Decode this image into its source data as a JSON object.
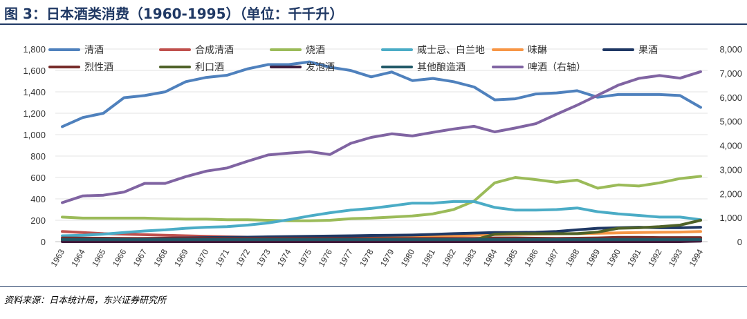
{
  "figure": {
    "title": "图 3：日本酒类消费（1960-1995）（单位：千千升）",
    "source": "资料来源：日本统计局，东兴证券研究所"
  },
  "chart_data": {
    "type": "line",
    "title": "图 3：日本酒类消费（1960-1995）（单位：千千升）",
    "xlabel": "",
    "ylabel": "千千升",
    "x": [
      "1963",
      "1964",
      "1965",
      "1966",
      "1967",
      "1968",
      "1969",
      "1970",
      "1971",
      "1972",
      "1973",
      "1974",
      "1975",
      "1976",
      "1977",
      "1978",
      "1979",
      "1980",
      "1981",
      "1982",
      "1983",
      "1984",
      "1985",
      "1986",
      "1987",
      "1988",
      "1989",
      "1990",
      "1991",
      "1992",
      "1993",
      "1994"
    ],
    "ylim_left": [
      0,
      1800
    ],
    "yticks_left": [
      "0",
      "200",
      "400",
      "600",
      "800",
      "1,000",
      "1,200",
      "1,400",
      "1,600",
      "1,800"
    ],
    "ylim_right": [
      0,
      8000
    ],
    "yticks_right": [
      "0",
      "1,000",
      "2,000",
      "3,000",
      "4,000",
      "5,000",
      "6,000",
      "7,000",
      "8,000"
    ],
    "legend_position": "top",
    "series": [
      {
        "name": "清酒",
        "axis": "left",
        "color": "#4f81bd",
        "values": [
          1075,
          1160,
          1200,
          1345,
          1365,
          1400,
          1495,
          1535,
          1555,
          1615,
          1655,
          1655,
          1680,
          1630,
          1600,
          1540,
          1585,
          1505,
          1525,
          1495,
          1445,
          1325,
          1335,
          1380,
          1390,
          1410,
          1350,
          1375,
          1375,
          1375,
          1365,
          1255
        ]
      },
      {
        "name": "合成清酒",
        "axis": "left",
        "color": "#c0504d",
        "values": [
          95,
          85,
          75,
          70,
          65,
          60,
          55,
          50,
          45,
          42,
          40,
          38,
          35,
          33,
          32,
          30,
          30,
          30,
          30,
          30,
          30,
          30,
          30,
          30,
          30,
          30,
          30,
          30,
          30,
          30,
          30,
          30
        ]
      },
      {
        "name": "烧酒",
        "axis": "left",
        "color": "#9bbb59",
        "values": [
          230,
          220,
          220,
          220,
          220,
          215,
          210,
          210,
          205,
          205,
          200,
          195,
          195,
          200,
          215,
          220,
          230,
          240,
          260,
          300,
          380,
          550,
          600,
          580,
          555,
          575,
          500,
          530,
          520,
          550,
          590,
          610
        ]
      },
      {
        "name": "威士忌、白兰地",
        "axis": "left",
        "color": "#4bacc6",
        "values": [
          55,
          60,
          70,
          85,
          100,
          110,
          125,
          135,
          140,
          155,
          175,
          205,
          240,
          270,
          295,
          310,
          335,
          360,
          360,
          375,
          375,
          320,
          295,
          295,
          300,
          315,
          280,
          260,
          245,
          230,
          230,
          205
        ]
      },
      {
        "name": "味醂",
        "axis": "left",
        "color": "#f79646",
        "values": [
          20,
          22,
          24,
          26,
          28,
          30,
          32,
          34,
          36,
          38,
          40,
          40,
          42,
          44,
          46,
          48,
          50,
          52,
          54,
          56,
          60,
          65,
          68,
          70,
          72,
          75,
          78,
          82,
          85,
          88,
          90,
          95
        ]
      },
      {
        "name": "果酒",
        "axis": "left",
        "color": "#1f3864",
        "values": [
          20,
          22,
          25,
          28,
          30,
          32,
          35,
          38,
          40,
          42,
          45,
          48,
          50,
          52,
          55,
          58,
          60,
          62,
          68,
          75,
          80,
          85,
          85,
          88,
          95,
          110,
          125,
          130,
          135,
          130,
          130,
          135
        ]
      },
      {
        "name": "烈性酒",
        "axis": "left",
        "color": "#772c2a",
        "values": [
          35,
          33,
          32,
          31,
          30,
          30,
          30,
          30,
          30,
          30,
          30,
          30,
          30,
          30,
          30,
          30,
          30,
          30,
          30,
          30,
          30,
          35,
          35,
          32,
          30,
          32,
          35,
          40,
          40,
          38,
          38,
          38
        ]
      },
      {
        "name": "利口酒",
        "axis": "left",
        "color": "#4f6228",
        "values": [
          15,
          15,
          15,
          15,
          15,
          15,
          15,
          15,
          15,
          15,
          15,
          15,
          15,
          15,
          15,
          15,
          15,
          15,
          15,
          15,
          15,
          70,
          75,
          75,
          75,
          75,
          90,
          125,
          130,
          140,
          155,
          200
        ]
      },
      {
        "name": "发泡酒",
        "axis": "left",
        "color": "#3f1d3d",
        "values": [
          0,
          0,
          0,
          0,
          0,
          0,
          0,
          0,
          0,
          0,
          0,
          0,
          0,
          0,
          0,
          0,
          0,
          0,
          0,
          0,
          0,
          0,
          0,
          0,
          0,
          0,
          0,
          0,
          0,
          0,
          0,
          5
        ]
      },
      {
        "name": "其他酿造酒",
        "axis": "left",
        "color": "#215968",
        "values": [
          20,
          20,
          20,
          20,
          20,
          20,
          20,
          20,
          20,
          20,
          20,
          20,
          20,
          20,
          20,
          20,
          20,
          20,
          20,
          20,
          20,
          20,
          20,
          20,
          20,
          20,
          20,
          20,
          20,
          20,
          20,
          20
        ]
      },
      {
        "name": "啤酒（右轴）",
        "axis": "right",
        "color": "#8064a2",
        "values": [
          1620,
          1900,
          1930,
          2060,
          2420,
          2420,
          2700,
          2930,
          3060,
          3340,
          3600,
          3680,
          3740,
          3620,
          4080,
          4330,
          4480,
          4390,
          4540,
          4680,
          4790,
          4560,
          4720,
          4900,
          5290,
          5670,
          6080,
          6500,
          6780,
          6900,
          6790,
          7060
        ]
      }
    ]
  }
}
